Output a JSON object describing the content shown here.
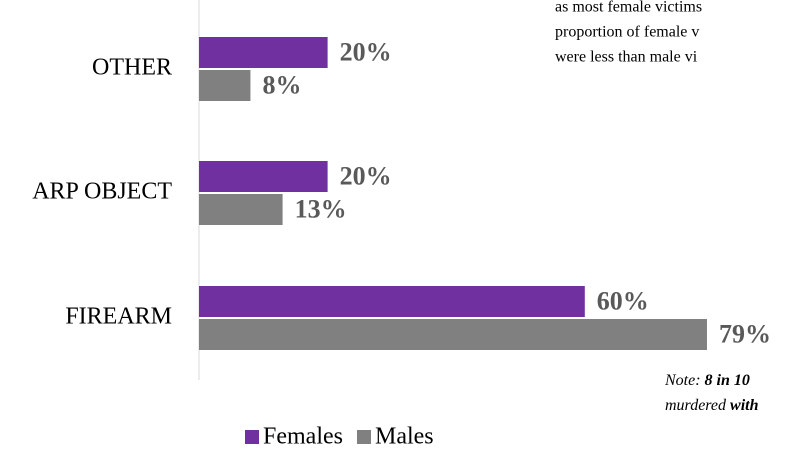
{
  "chart_data": {
    "type": "hbar",
    "categories": [
      "OTHER",
      "ARP OBJECT",
      "FIREARM"
    ],
    "series": [
      {
        "name": "Females",
        "color": "#7030a0",
        "values": [
          20,
          20,
          60
        ],
        "value_labels": [
          "20%",
          "20%",
          "60%"
        ]
      },
      {
        "name": "Males",
        "color": "#808080",
        "values": [
          8,
          13,
          79
        ],
        "value_labels": [
          "8%",
          "13%",
          "79%"
        ]
      }
    ],
    "xlim": [
      0,
      100
    ],
    "legend": "bottom",
    "annotation_lines": [
      "as most female victims",
      "proportion of female v",
      "were less than male vi"
    ],
    "note_lines": [
      [
        "Note: ",
        "8 in 10"
      ],
      [
        "murdered ",
        "with"
      ]
    ]
  }
}
